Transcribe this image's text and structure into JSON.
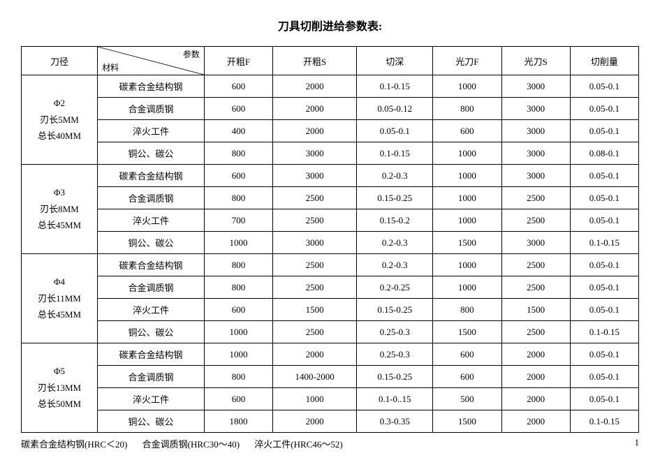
{
  "title": "刀具切削进给参数表:",
  "header": {
    "diameter": "刀径",
    "diag_top": "参数",
    "diag_bottom": "材料",
    "cols": [
      "开粗F",
      "开粗S",
      "切深",
      "光刀F",
      "光刀S",
      "切削量"
    ]
  },
  "groups": [
    {
      "label_lines": [
        "Φ2",
        "刃长5MM",
        "总长40MM"
      ],
      "rows": [
        {
          "mat": "碳素合金结构钢",
          "v": [
            "600",
            "2000",
            "0.1-0.15",
            "1000",
            "3000",
            "0.05-0.1"
          ]
        },
        {
          "mat": "合金调质钢",
          "v": [
            "600",
            "2000",
            "0.05-0.12",
            "800",
            "3000",
            "0.05-0.1"
          ]
        },
        {
          "mat": "淬火工件",
          "v": [
            "400",
            "2000",
            "0.05-0.1",
            "600",
            "3000",
            "0.05-0.1"
          ]
        },
        {
          "mat": "铜公、碳公",
          "v": [
            "800",
            "3000",
            "0.1-0.15",
            "1000",
            "3000",
            "0.08-0.1"
          ]
        }
      ]
    },
    {
      "label_lines": [
        "Φ3",
        "刃长8MM",
        "总长45MM"
      ],
      "rows": [
        {
          "mat": "碳素合金结构钢",
          "v": [
            "600",
            "3000",
            "0.2-0.3",
            "1000",
            "3000",
            "0.05-0.1"
          ]
        },
        {
          "mat": "合金调质钢",
          "v": [
            "800",
            "2500",
            "0.15-0.25",
            "1000",
            "2500",
            "0.05-0.1"
          ]
        },
        {
          "mat": "淬火工件",
          "v": [
            "700",
            "2500",
            "0.15-0.2",
            "1000",
            "2500",
            "0.05-0.1"
          ]
        },
        {
          "mat": "铜公、碳公",
          "v": [
            "1000",
            "3000",
            "0.2-0.3",
            "1500",
            "3000",
            "0.1-0.15"
          ]
        }
      ]
    },
    {
      "label_lines": [
        "Φ4",
        "刃长11MM",
        "总长45MM"
      ],
      "rows": [
        {
          "mat": "碳素合金结构钢",
          "v": [
            "800",
            "2500",
            "0.2-0.3",
            "1000",
            "2500",
            "0.05-0.1"
          ]
        },
        {
          "mat": "合金调质钢",
          "v": [
            "800",
            "2500",
            "0.2-0.25",
            "1000",
            "2500",
            "0.05-0.1"
          ]
        },
        {
          "mat": "淬火工件",
          "v": [
            "600",
            "1500",
            "0.15-0.25",
            "800",
            "1500",
            "0.05-0.1"
          ]
        },
        {
          "mat": "铜公、碳公",
          "v": [
            "1000",
            "2500",
            "0.25-0.3",
            "1500",
            "2500",
            "0.1-0.15"
          ]
        }
      ]
    },
    {
      "label_lines": [
        "Φ5",
        "刃长13MM",
        "总长50MM"
      ],
      "rows": [
        {
          "mat": "碳素合金结构钢",
          "v": [
            "1000",
            "2000",
            "0.25-0.3",
            "600",
            "2000",
            "0.05-0.1"
          ]
        },
        {
          "mat": "合金调质钢",
          "v": [
            "800",
            "1400-2000",
            "0.15-0.25",
            "600",
            "2000",
            "0.05-0.1"
          ]
        },
        {
          "mat": "淬火工件",
          "v": [
            "600",
            "1000",
            "0.1-0..15",
            "500",
            "2000",
            "0.05-0.1"
          ]
        },
        {
          "mat": "铜公、碳公",
          "v": [
            "1800",
            "2000",
            "0.3-0.35",
            "1500",
            "2000",
            "0.1-0.15"
          ]
        }
      ]
    }
  ],
  "footer": {
    "notes": [
      "碳素合金结构钢(HRC＜20)",
      "合金调质钢(HRC30～40)",
      "淬火工件(HRC46～52)"
    ],
    "page": "1"
  },
  "style": {
    "border_color": "#000000",
    "bg": "#ffffff",
    "title_fontsize": 16,
    "body_fontsize": 13
  }
}
